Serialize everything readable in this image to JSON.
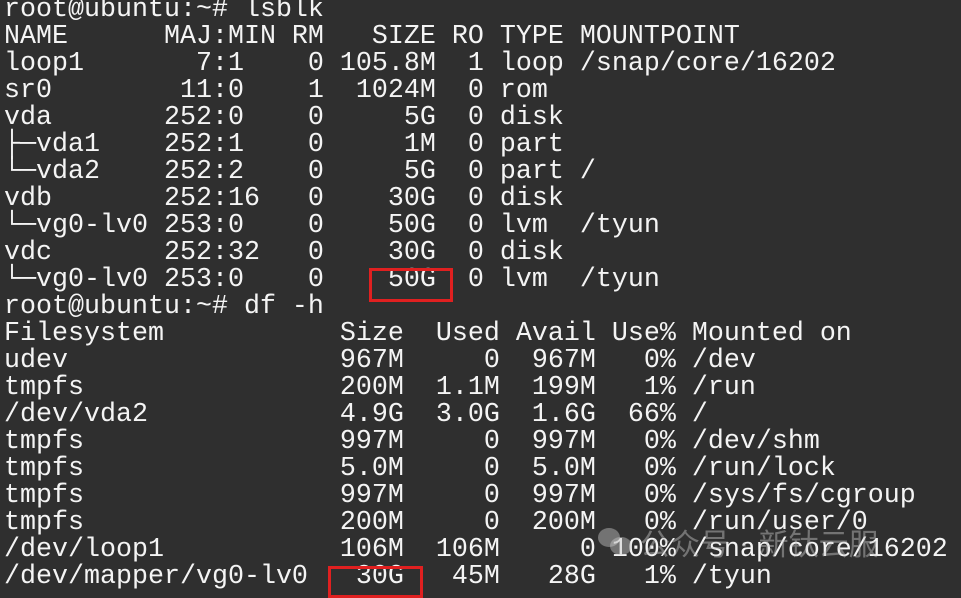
{
  "prompt1": "root@ubuntu:~# lsblk",
  "lsblk": {
    "header": [
      "NAME",
      "MAJ:MIN",
      "RM",
      "SIZE",
      "RO",
      "TYPE",
      "MOUNTPOINT"
    ],
    "rows": [
      {
        "name": "loop1",
        "maj": "7",
        "min": "1",
        "rm": "0",
        "size": "105.8M",
        "ro": "1",
        "type": "loop",
        "mount": "/snap/core/16202"
      },
      {
        "name": "sr0",
        "maj": "11",
        "min": "0",
        "rm": "1",
        "size": "1024M",
        "ro": "0",
        "type": "rom",
        "mount": ""
      },
      {
        "name": "vda",
        "maj": "252",
        "min": "0",
        "rm": "0",
        "size": "5G",
        "ro": "0",
        "type": "disk",
        "mount": ""
      },
      {
        "name": "├─vda1",
        "maj": "252",
        "min": "1",
        "rm": "0",
        "size": "1M",
        "ro": "0",
        "type": "part",
        "mount": ""
      },
      {
        "name": "└─vda2",
        "maj": "252",
        "min": "2",
        "rm": "0",
        "size": "5G",
        "ro": "0",
        "type": "part",
        "mount": "/"
      },
      {
        "name": "vdb",
        "maj": "252",
        "min": "16",
        "rm": "0",
        "size": "30G",
        "ro": "0",
        "type": "disk",
        "mount": ""
      },
      {
        "name": "└─vg0-lv0",
        "maj": "253",
        "min": "0",
        "rm": "0",
        "size": "50G",
        "ro": "0",
        "type": "lvm",
        "mount": "/tyun"
      },
      {
        "name": "vdc",
        "maj": "252",
        "min": "32",
        "rm": "0",
        "size": "30G",
        "ro": "0",
        "type": "disk",
        "mount": ""
      },
      {
        "name": "└─vg0-lv0",
        "maj": "253",
        "min": "0",
        "rm": "0",
        "size": "50G",
        "ro": "0",
        "type": "lvm",
        "mount": "/tyun"
      }
    ]
  },
  "prompt2": "root@ubuntu:~# df -h",
  "df": {
    "header": [
      "Filesystem",
      "Size",
      "Used",
      "Avail",
      "Use%",
      "Mounted on"
    ],
    "rows": [
      [
        "udev",
        "967M",
        "0",
        "967M",
        "0%",
        "/dev"
      ],
      [
        "tmpfs",
        "200M",
        "1.1M",
        "199M",
        "1%",
        "/run"
      ],
      [
        "/dev/vda2",
        "4.9G",
        "3.0G",
        "1.6G",
        "66%",
        "/"
      ],
      [
        "tmpfs",
        "997M",
        "0",
        "997M",
        "0%",
        "/dev/shm"
      ],
      [
        "tmpfs",
        "5.0M",
        "0",
        "5.0M",
        "0%",
        "/run/lock"
      ],
      [
        "tmpfs",
        "997M",
        "0",
        "997M",
        "0%",
        "/sys/fs/cgroup"
      ],
      [
        "tmpfs",
        "200M",
        "0",
        "200M",
        "0%",
        "/run/user/0"
      ],
      [
        "/dev/loop1",
        "106M",
        "106M",
        "0",
        "100%",
        "/snap/core/16202"
      ],
      [
        "/dev/mapper/vg0-lv0",
        "30G",
        "45M",
        "28G",
        "1%",
        "/tyun"
      ]
    ]
  },
  "highlight_color": "#e02020",
  "watermark": "公众号 · 新钛云服",
  "watermark_icon": "wechat-icon"
}
